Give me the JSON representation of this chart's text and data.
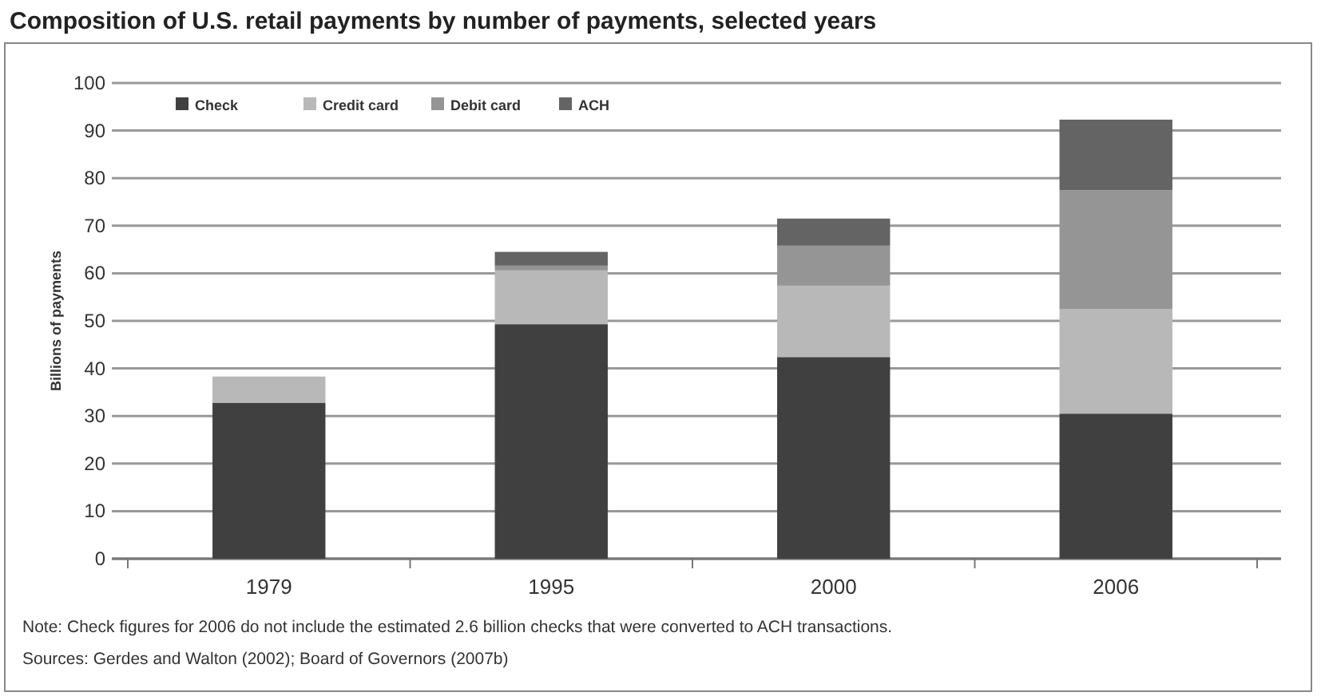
{
  "chart_data": {
    "type": "bar",
    "title": "Composition of U.S. retail payments by number of payments, selected years",
    "ylabel": "Billions of payments",
    "categories": [
      "1979",
      "1995",
      "2000",
      "2006"
    ],
    "series": [
      {
        "name": "Check",
        "color": "#404040",
        "values": [
          32.8,
          49.3,
          42.4,
          30.5
        ]
      },
      {
        "name": "Credit card",
        "color": "#b8b8b8",
        "values": [
          5.5,
          11.3,
          15,
          22
        ]
      },
      {
        "name": "Debit card",
        "color": "#959595",
        "values": [
          0,
          1,
          8.4,
          25
        ]
      },
      {
        "name": "ACH",
        "color": "#646464",
        "values": [
          0,
          2.9,
          5.7,
          14.8
        ]
      }
    ],
    "stacked": true,
    "ylim": [
      0,
      100
    ],
    "yticks": [
      0,
      10,
      20,
      30,
      40,
      50,
      60,
      70,
      80,
      90,
      100
    ],
    "grid": "y",
    "legend": "top left",
    "annotations": [
      "Note: Check figures for 2006 do not include the estimated 2.6 billion checks that were converted to ACH transactions.",
      "Sources: Gerdes and Walton (2002); Board of Governors (2007b)"
    ]
  }
}
